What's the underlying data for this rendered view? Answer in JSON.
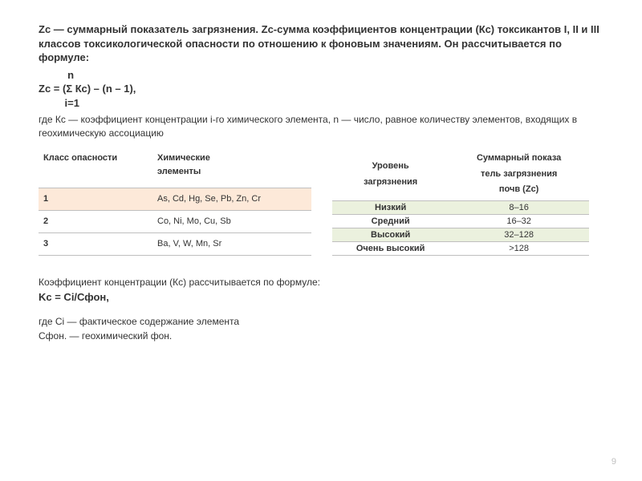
{
  "intro": "Zc — суммарный показатель загрязнения. Zc-сумма коэффициентов концентрации (Кс) токсикантов I, II и III классов токсикологической опасности по отношению к фоновым значениям. Он рассчитывается по формуле:",
  "formula": {
    "line1": "          n",
    "line2": "Zc = (Σ Кс) – (n – 1),",
    "line3": "         i=1"
  },
  "after_formula": "где Кс — коэффициент концентрации i-го химического элемента, n — число, равное количеству элементов, входящих в геохимическую ассоциацию",
  "table1": {
    "headers": {
      "col1": "Класс опасности",
      "col2_l1": "Химические",
      "col2_l2": "элементы"
    },
    "rows": [
      {
        "cls": "1",
        "elems": "As, Cd, Hg, Se, Pb, Zn, Cr",
        "highlight": true
      },
      {
        "cls": "2",
        "elems": "Co, Ni, Mo, Cu, Sb",
        "highlight": false
      },
      {
        "cls": "3",
        "elems": "Ba, V, W, Mn, Sr",
        "highlight": false
      }
    ],
    "highlight_color": "#fde9d9",
    "border_color": "#bfbfbf"
  },
  "table2": {
    "headers": {
      "col1_l1": "Уровень",
      "col1_l2": "загрязнения",
      "col2_l1": "Суммарный показа",
      "col2_l2": "тель загрязнения",
      "col2_l3": "почв (Zc)"
    },
    "rows": [
      {
        "level": "Низкий",
        "range": "8–16",
        "highlight": true
      },
      {
        "level": "Средний",
        "range": "16–32",
        "highlight": false
      },
      {
        "level": "Высокий",
        "range": "32–128",
        "highlight": true
      },
      {
        "level": "Очень высокий",
        "range": ">128",
        "highlight": false
      }
    ],
    "highlight_color": "#ebf1de",
    "border_color": "#bfbfbf"
  },
  "kc_intro": "Коэффициент концентрации (Кс) рассчитывается по формуле:",
  "kc_formula": "Kc = Ci/Сфон,",
  "kc_where_l1": "где Ci — фактическое содержание элемента",
  "kc_where_l2": "Сфон. — геохимический фон.",
  "page_number": "9"
}
